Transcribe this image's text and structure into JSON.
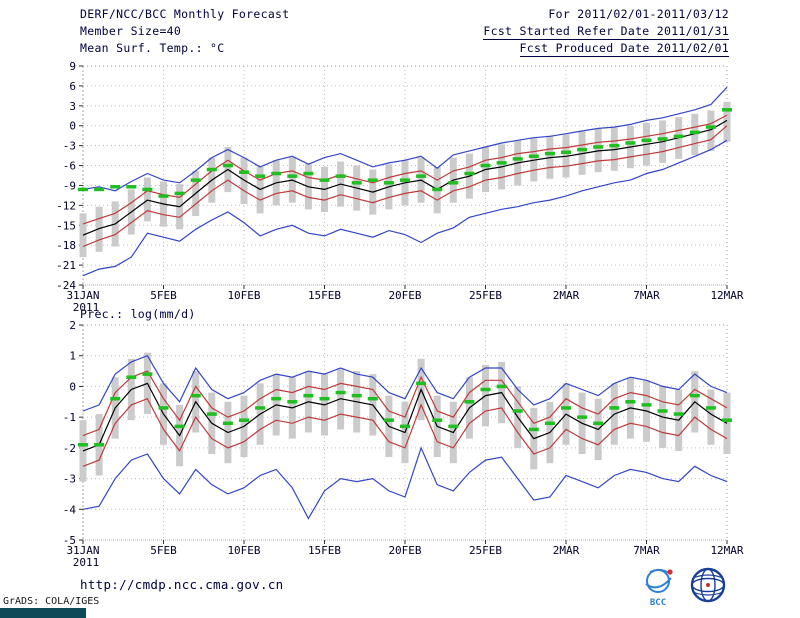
{
  "header": {
    "title": "DERF/NCC/BCC Monthly Forecast",
    "for_range": "For 2011/02/01-2011/03/12",
    "member_size": "Member Size=40",
    "fcst_started": "Fcst Started Refer Date 2011/01/31",
    "temp_label": "Mean Surf. Temp.: °C",
    "fcst_produced": "Fcst Produced Date 2011/02/01"
  },
  "footer": {
    "url": "http://cmdp.ncc.cma.gov.cn",
    "grads_credit": "GrADS: COLA/IGES",
    "logo_bcc_label": "BCC"
  },
  "colors": {
    "header_text": "#000040",
    "grid": "#bdbdbd",
    "frame": "#9a9a9a",
    "tick": "#303030",
    "ensemble_minmax_blue": "#3246c8",
    "ensemble_std_red": "#c03a3a",
    "ensemble_mean_black": "#000000",
    "observation_green": "#1fbf1f",
    "spread_bar_gray": "#cbcbcb",
    "corner_bar_teal": "#0c4a57",
    "bcc_logo_blue": "#2e7fd6",
    "ncc_logo_blue": "#1a3f99"
  },
  "chart_data": [
    {
      "type": "line",
      "name": "mean-surface-temperature",
      "title": "Mean Surf. Temp.: °C",
      "ylim": [
        -24,
        9
      ],
      "y_ticks": [
        9,
        6,
        3,
        0,
        -3,
        -6,
        -9,
        -12,
        -15,
        -18,
        -21,
        -24
      ],
      "grid": true,
      "x_tick_labels": [
        "31JAN",
        "5FEB",
        "10FEB",
        "15FEB",
        "20FEB",
        "25FEB",
        "2MAR",
        "7MAR",
        "12MAR"
      ],
      "x_tick_positions": [
        0,
        5,
        10,
        15,
        20,
        25,
        30,
        35,
        40
      ],
      "x_year_label": "2011",
      "series": [
        {
          "name": "ensemble-max",
          "color": "#3246c8",
          "values": [
            -9.6,
            -9.2,
            -9.8,
            -8.4,
            -7.2,
            -8.2,
            -8.6,
            -6.8,
            -4.8,
            -3.6,
            -4.8,
            -6.2,
            -5.2,
            -4.6,
            -5.8,
            -4.8,
            -4.2,
            -5.2,
            -6.2,
            -5.6,
            -5.2,
            -4.6,
            -6.4,
            -4.4,
            -3.8,
            -3.2,
            -2.6,
            -2.2,
            -1.8,
            -1.6,
            -1.2,
            -0.8,
            -0.4,
            -0.2,
            0.2,
            0.8,
            1.2,
            1.8,
            2.4,
            3.2,
            5.8
          ]
        },
        {
          "name": "ensemble-min",
          "color": "#3246c8",
          "values": [
            -22.6,
            -21.6,
            -21.2,
            -19.8,
            -16.2,
            -16.8,
            -17.4,
            -15.6,
            -14.2,
            -13.0,
            -14.6,
            -16.6,
            -15.6,
            -15.0,
            -16.2,
            -16.6,
            -15.6,
            -16.2,
            -16.8,
            -15.8,
            -16.4,
            -17.6,
            -16.2,
            -15.4,
            -13.8,
            -13.2,
            -12.6,
            -12.2,
            -11.6,
            -11.2,
            -10.6,
            -9.8,
            -9.2,
            -8.6,
            -8.2,
            -7.2,
            -6.6,
            -5.6,
            -4.6,
            -3.6,
            -2.2
          ]
        },
        {
          "name": "mean-plus-std",
          "color": "#c03a3a",
          "values": [
            -14.8,
            -14.0,
            -13.2,
            -11.6,
            -9.8,
            -10.4,
            -10.8,
            -8.8,
            -6.8,
            -5.2,
            -6.8,
            -8.2,
            -7.2,
            -6.8,
            -7.8,
            -8.2,
            -7.4,
            -8.0,
            -8.6,
            -7.8,
            -7.2,
            -6.8,
            -8.2,
            -6.8,
            -6.2,
            -5.2,
            -4.8,
            -4.2,
            -3.9,
            -3.5,
            -3.3,
            -2.9,
            -2.5,
            -2.3,
            -2.0,
            -1.6,
            -1.2,
            -0.7,
            -0.2,
            0.3,
            1.6
          ]
        },
        {
          "name": "mean-minus-std",
          "color": "#c03a3a",
          "values": [
            -18.2,
            -17.2,
            -16.4,
            -14.6,
            -12.8,
            -13.4,
            -13.8,
            -11.8,
            -9.8,
            -8.2,
            -9.8,
            -11.2,
            -10.2,
            -9.8,
            -10.8,
            -11.2,
            -10.4,
            -11.0,
            -11.6,
            -10.8,
            -10.2,
            -9.8,
            -11.2,
            -9.8,
            -9.2,
            -8.2,
            -7.8,
            -7.2,
            -6.7,
            -6.3,
            -6.1,
            -5.7,
            -5.3,
            -5.1,
            -4.7,
            -4.3,
            -3.9,
            -3.3,
            -2.7,
            -2.1,
            0.0
          ]
        },
        {
          "name": "ensemble-mean",
          "color": "#000000",
          "values": [
            -16.5,
            -15.5,
            -14.8,
            -13.0,
            -11.2,
            -11.8,
            -12.2,
            -10.2,
            -8.2,
            -6.6,
            -8.2,
            -9.6,
            -8.6,
            -8.2,
            -9.2,
            -9.6,
            -8.8,
            -9.4,
            -10.0,
            -9.2,
            -8.6,
            -8.2,
            -9.6,
            -8.2,
            -7.6,
            -6.6,
            -6.2,
            -5.6,
            -5.2,
            -4.8,
            -4.6,
            -4.2,
            -3.8,
            -3.6,
            -3.2,
            -2.8,
            -2.4,
            -1.8,
            -1.2,
            -0.6,
            0.8
          ]
        },
        {
          "name": "observation",
          "color": "#1fbf1f",
          "style": "dashes",
          "values": [
            -9.6,
            -9.6,
            -9.2,
            -9.2,
            -9.6,
            -10.6,
            -10.2,
            -8.2,
            -6.6,
            -6.0,
            -7.0,
            -7.6,
            -7.2,
            -7.6,
            -7.2,
            -8.2,
            -7.6,
            -8.6,
            -8.2,
            -8.6,
            -8.2,
            -7.6,
            -9.6,
            -8.6,
            -7.2,
            -6.0,
            -5.6,
            -5.0,
            -4.6,
            -4.2,
            -4.0,
            -3.6,
            -3.2,
            -3.0,
            -2.6,
            -2.2,
            -2.0,
            -1.6,
            -1.0,
            -0.2,
            2.4
          ]
        }
      ],
      "bars": {
        "name": "ensemble-spread",
        "color": "#cbcbcb",
        "low": [
          -19.8,
          -19.0,
          -18.2,
          -16.4,
          -14.4,
          -15.2,
          -15.6,
          -13.6,
          -11.6,
          -10.0,
          -11.8,
          -13.2,
          -12.0,
          -11.6,
          -12.6,
          -13.0,
          -12.2,
          -12.8,
          -13.4,
          -12.6,
          -12.0,
          -11.6,
          -13.2,
          -11.6,
          -11.0,
          -10.0,
          -9.6,
          -9.0,
          -8.4,
          -8.0,
          -7.8,
          -7.4,
          -7.0,
          -6.8,
          -6.4,
          -6.0,
          -5.6,
          -5.0,
          -4.4,
          -3.8,
          -2.4
        ],
        "high": [
          -13.2,
          -12.2,
          -11.4,
          -9.6,
          -7.8,
          -8.4,
          -8.8,
          -6.8,
          -4.8,
          -3.2,
          -4.8,
          -6.2,
          -5.2,
          -4.8,
          -5.8,
          -6.2,
          -5.4,
          -6.0,
          -6.6,
          -5.8,
          -5.2,
          -4.8,
          -6.2,
          -4.8,
          -4.2,
          -3.2,
          -2.8,
          -2.2,
          -1.9,
          -1.5,
          -1.3,
          -0.9,
          -0.5,
          -0.3,
          0.0,
          0.4,
          0.8,
          1.3,
          1.8,
          2.3,
          3.6
        ]
      }
    },
    {
      "type": "line",
      "name": "precipitation",
      "title": "Prec.: log(mm/d)",
      "ylim": [
        -5,
        2
      ],
      "y_ticks": [
        2,
        1,
        0,
        -1,
        -2,
        -3,
        -4,
        -5
      ],
      "grid": true,
      "x_tick_labels": [
        "31JAN",
        "5FEB",
        "10FEB",
        "15FEB",
        "20FEB",
        "25FEB",
        "2MAR",
        "7MAR",
        "12MAR"
      ],
      "x_tick_positions": [
        0,
        5,
        10,
        15,
        20,
        25,
        30,
        35,
        40
      ],
      "x_year_label": "2011",
      "series": [
        {
          "name": "ensemble-max",
          "color": "#3246c8",
          "values": [
            -0.8,
            -0.6,
            0.4,
            0.8,
            1.0,
            0.1,
            -0.5,
            0.6,
            -0.1,
            -0.4,
            -0.2,
            0.2,
            0.4,
            0.3,
            0.5,
            0.4,
            0.6,
            0.4,
            0.3,
            -0.2,
            -0.4,
            0.6,
            -0.2,
            -0.4,
            0.3,
            0.6,
            0.6,
            -0.1,
            -0.6,
            -0.4,
            0.1,
            -0.1,
            -0.3,
            0.1,
            0.3,
            0.2,
            0.0,
            -0.1,
            0.4,
            0.0,
            -0.2
          ]
        },
        {
          "name": "ensemble-min",
          "color": "#3246c8",
          "values": [
            -4.0,
            -3.9,
            -3.0,
            -2.4,
            -2.2,
            -3.0,
            -3.5,
            -2.7,
            -3.2,
            -3.5,
            -3.3,
            -2.9,
            -2.7,
            -3.3,
            -4.3,
            -3.4,
            -3.0,
            -3.1,
            -3.0,
            -3.4,
            -3.6,
            -2.0,
            -3.2,
            -3.4,
            -2.8,
            -2.4,
            -2.3,
            -3.0,
            -3.7,
            -3.6,
            -2.9,
            -3.1,
            -3.3,
            -2.9,
            -2.7,
            -2.8,
            -3.0,
            -3.1,
            -2.6,
            -2.9,
            -3.1
          ]
        },
        {
          "name": "mean-plus-std",
          "color": "#c03a3a",
          "values": [
            -1.6,
            -1.4,
            -0.2,
            0.3,
            0.5,
            -0.4,
            -1.1,
            0.0,
            -0.7,
            -1.0,
            -0.8,
            -0.4,
            -0.1,
            -0.2,
            0.0,
            -0.1,
            0.1,
            0.0,
            -0.1,
            -0.8,
            -1.0,
            0.3,
            -0.8,
            -1.0,
            -0.2,
            0.2,
            0.2,
            -0.5,
            -1.2,
            -1.0,
            -0.4,
            -0.7,
            -0.9,
            -0.4,
            -0.2,
            -0.3,
            -0.5,
            -0.6,
            -0.1,
            -0.4,
            -0.7
          ]
        },
        {
          "name": "mean-minus-std",
          "color": "#c03a3a",
          "values": [
            -2.6,
            -2.4,
            -1.2,
            -0.6,
            -0.4,
            -1.4,
            -2.1,
            -1.0,
            -1.7,
            -2.0,
            -1.8,
            -1.4,
            -1.1,
            -1.2,
            -1.0,
            -1.1,
            -0.9,
            -1.0,
            -1.1,
            -1.8,
            -2.0,
            -0.6,
            -1.8,
            -2.0,
            -1.2,
            -0.8,
            -0.7,
            -1.5,
            -2.2,
            -2.0,
            -1.4,
            -1.7,
            -1.9,
            -1.4,
            -1.2,
            -1.3,
            -1.5,
            -1.6,
            -1.0,
            -1.4,
            -1.7
          ]
        },
        {
          "name": "ensemble-mean",
          "color": "#000000",
          "values": [
            -2.1,
            -1.9,
            -0.7,
            -0.1,
            0.1,
            -0.9,
            -1.6,
            -0.5,
            -1.2,
            -1.5,
            -1.3,
            -0.9,
            -0.6,
            -0.7,
            -0.5,
            -0.6,
            -0.4,
            -0.5,
            -0.6,
            -1.3,
            -1.5,
            -0.1,
            -1.3,
            -1.5,
            -0.7,
            -0.3,
            -0.2,
            -1.0,
            -1.7,
            -1.5,
            -0.9,
            -1.2,
            -1.4,
            -0.9,
            -0.7,
            -0.8,
            -1.0,
            -1.1,
            -0.5,
            -0.9,
            -1.2
          ]
        },
        {
          "name": "observation",
          "color": "#1fbf1f",
          "style": "dashes",
          "values": [
            -1.9,
            -1.9,
            -0.4,
            0.3,
            0.4,
            -0.7,
            -1.3,
            -0.3,
            -0.9,
            -1.2,
            -1.1,
            -0.7,
            -0.4,
            -0.5,
            -0.3,
            -0.4,
            -0.2,
            -0.3,
            -0.4,
            -1.1,
            -1.3,
            0.1,
            -1.1,
            -1.3,
            -0.5,
            -0.1,
            0.0,
            -0.8,
            -1.4,
            -1.2,
            -0.7,
            -1.0,
            -1.2,
            -0.7,
            -0.5,
            -0.6,
            -0.8,
            -0.9,
            -0.3,
            -0.7,
            -1.1
          ]
        }
      ],
      "bars": {
        "name": "ensemble-spread",
        "color": "#cbcbcb",
        "low": [
          -3.1,
          -2.9,
          -1.7,
          -1.1,
          -0.9,
          -1.9,
          -2.6,
          -1.5,
          -2.2,
          -2.5,
          -2.3,
          -1.9,
          -1.6,
          -1.7,
          -1.5,
          -1.6,
          -1.4,
          -1.5,
          -1.6,
          -2.3,
          -2.5,
          -1.1,
          -2.3,
          -2.5,
          -1.7,
          -1.3,
          -1.2,
          -2.0,
          -2.7,
          -2.5,
          -1.9,
          -2.2,
          -2.4,
          -1.9,
          -1.7,
          -1.8,
          -2.0,
          -2.1,
          -1.5,
          -1.9,
          -2.2
        ],
        "high": [
          -1.1,
          -0.9,
          0.3,
          0.9,
          1.1,
          0.1,
          -0.6,
          0.5,
          -0.2,
          -0.5,
          -0.3,
          0.1,
          0.4,
          0.3,
          0.5,
          0.4,
          0.6,
          0.5,
          0.4,
          -0.3,
          -0.5,
          0.9,
          -0.3,
          -0.5,
          0.3,
          0.7,
          0.8,
          0.0,
          -0.7,
          -0.5,
          0.1,
          -0.2,
          -0.4,
          0.1,
          0.3,
          0.2,
          0.0,
          -0.1,
          0.5,
          -0.1,
          -0.2
        ]
      }
    }
  ]
}
